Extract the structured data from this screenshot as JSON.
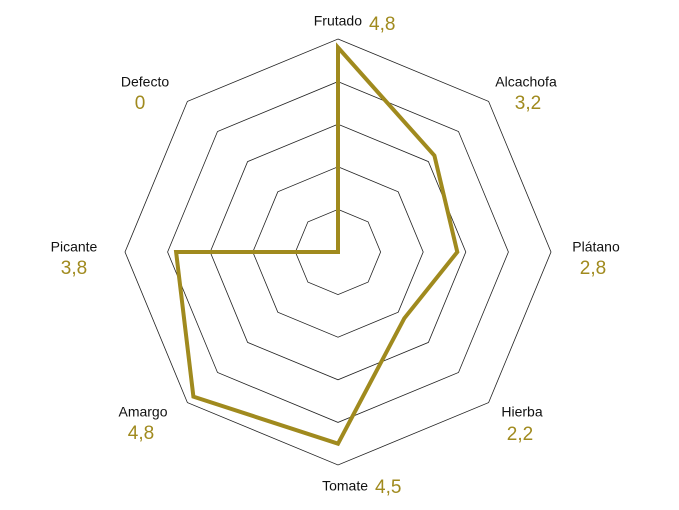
{
  "chart_data": {
    "type": "radar",
    "categories": [
      "Frutado",
      "Alcachofa",
      "Plátano",
      "Hierba",
      "Tomate",
      "Amargo",
      "Picante",
      "Defecto"
    ],
    "values": [
      4.8,
      3.2,
      2.8,
      2.2,
      4.5,
      4.8,
      3.8,
      0
    ],
    "value_labels": [
      "4,8",
      "3,2",
      "2,8",
      "2,2",
      "4,5",
      "4,8",
      "3,8",
      "0"
    ],
    "color": "#a08a1e",
    "rlim": [
      0,
      5
    ],
    "rticks": [
      1,
      2,
      3,
      4,
      5
    ],
    "grid": true
  }
}
